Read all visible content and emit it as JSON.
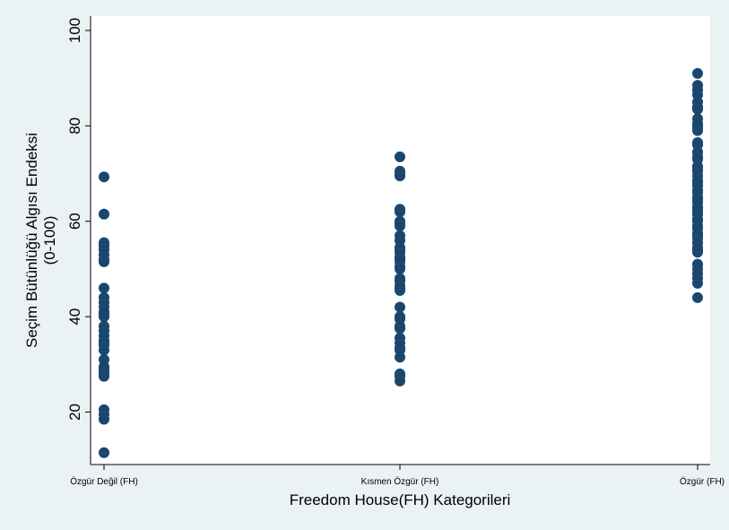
{
  "chart_data": {
    "type": "scatter",
    "title": "",
    "xlabel": "Freedom House(FH) Kategorileri",
    "ylabel_lines": [
      "Seçim Bütünlüğü Algısı Endeksi",
      "(0-100)"
    ],
    "categories": [
      "Özgür Değil (FH)",
      "Kısmen Özgür (FH)",
      "Özgür (FH)"
    ],
    "ylim": [
      9,
      103
    ],
    "yticks": [
      20,
      40,
      60,
      80,
      100
    ],
    "grid": false,
    "legend": "none",
    "marker_color": "#1a476f",
    "series": [
      {
        "category_index": 0,
        "values": [
          69.3,
          61.5,
          55.5,
          54.8,
          54,
          53,
          52,
          51.5,
          46,
          44,
          43,
          42,
          41,
          40.5,
          40,
          38,
          37,
          36,
          35,
          34.5,
          34,
          33,
          31,
          29.5,
          29,
          28.5,
          28,
          27.5,
          20.5,
          19.5,
          18.5,
          11.5
        ]
      },
      {
        "category_index": 1,
        "values": [
          73.5,
          70.5,
          70,
          69.5,
          62.5,
          62,
          60,
          59.5,
          59,
          57,
          56,
          54.5,
          54,
          53.5,
          52.5,
          52,
          51.5,
          50.5,
          50,
          48,
          47.5,
          46.5,
          46,
          45.5,
          42,
          40,
          39.5,
          38,
          37.5,
          35.5,
          34.5,
          33.5,
          33,
          31.5,
          28,
          27.5,
          26.5
        ]
      },
      {
        "category_index": 2,
        "values": [
          91,
          88.5,
          87.5,
          86.5,
          85,
          84,
          83.5,
          81.5,
          80.5,
          80,
          79.5,
          79,
          76.5,
          76,
          74.5,
          73.5,
          73,
          71.5,
          71,
          70.5,
          69.5,
          68.5,
          68,
          67.5,
          66.5,
          66,
          65,
          64.5,
          64,
          63,
          62.5,
          62,
          61.5,
          60.5,
          60,
          59,
          58.5,
          57.5,
          57,
          56.5,
          55.5,
          54.5,
          54,
          53.5,
          51,
          50,
          49,
          48,
          47,
          44
        ]
      }
    ]
  }
}
